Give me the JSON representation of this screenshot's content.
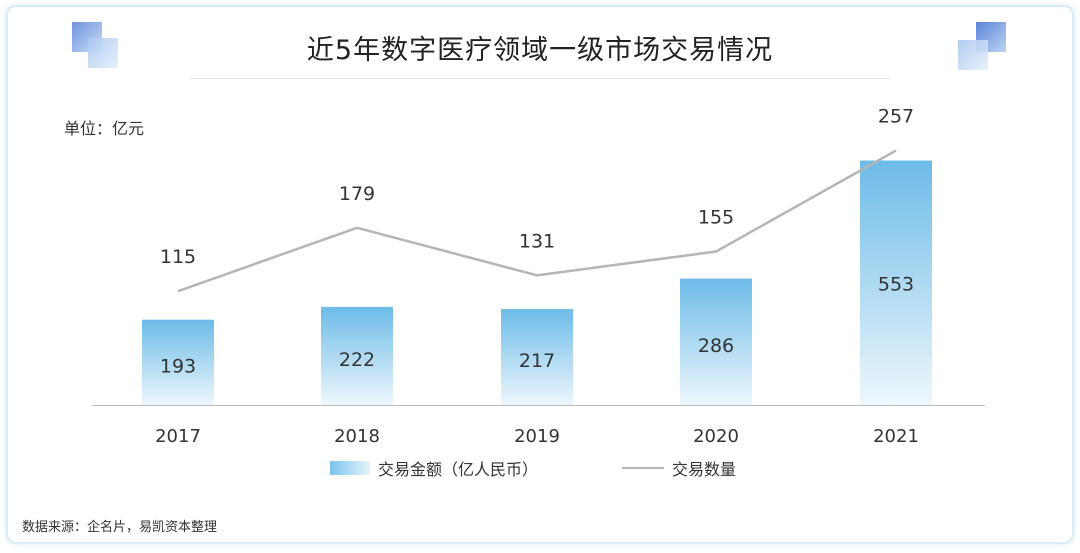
{
  "title": "近5年数字医疗领域一级市场交易情况",
  "unit_label": "单位：亿元",
  "source_note": "数据来源：企名片，易凯资本整理",
  "colors": {
    "bar_top": "#6dbbe8",
    "bar_bottom": "#eef7fc",
    "line": "#b5b5b5",
    "axis": "#bbbbbb",
    "text": "#333333",
    "deco_dark": "#5b84d6",
    "deco_light": "#b9d3f3"
  },
  "chart_data": {
    "type": "bar",
    "categories": [
      "2017",
      "2018",
      "2019",
      "2020",
      "2021"
    ],
    "series": [
      {
        "name": "交易金额（亿人民币）",
        "type": "bar",
        "values": [
          193,
          222,
          217,
          286,
          553
        ]
      },
      {
        "name": "交易数量",
        "type": "line",
        "values": [
          115,
          179,
          131,
          155,
          257
        ]
      }
    ],
    "ylim_bar": [
      0,
      600
    ],
    "ylim_line": [
      0,
      300
    ],
    "grid": false,
    "legend": "bottom"
  }
}
